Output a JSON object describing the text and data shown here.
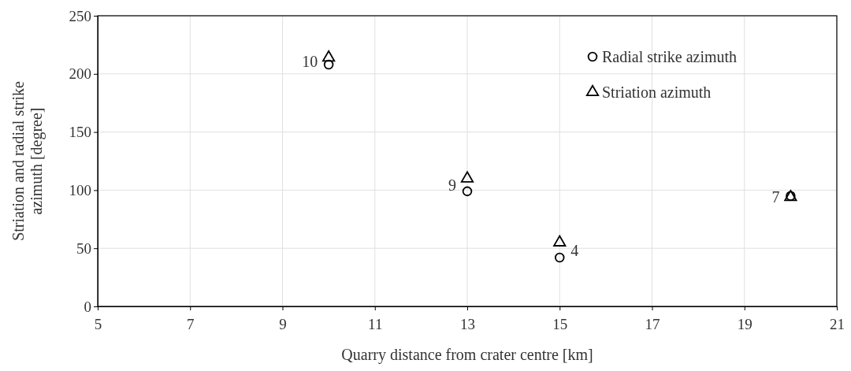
{
  "chart_data": {
    "type": "scatter",
    "xlabel": "Quarry distance from crater centre [km]",
    "ylabel": "Striation and radial strike azimuth [degree]",
    "xlim": [
      5,
      21
    ],
    "xticks": [
      5,
      7,
      9,
      11,
      13,
      15,
      17,
      19,
      21
    ],
    "ylim": [
      0,
      250
    ],
    "yticks": [
      0,
      50,
      100,
      150,
      200,
      250
    ],
    "grid": true,
    "legend": "top right",
    "series": [
      {
        "name": "Radial strike azimuth",
        "color": "#000000",
        "marker": "circle",
        "x": [
          10,
          13,
          15,
          20
        ],
        "values": [
          208,
          99,
          42,
          95
        ]
      },
      {
        "name": "Striation azimuth",
        "color": "#000000",
        "marker": "triangle",
        "x": [
          10,
          13,
          15,
          20
        ],
        "values": [
          214,
          110,
          55,
          94
        ]
      }
    ],
    "annotations": [
      {
        "text": "10",
        "x": 10,
        "y": 211
      },
      {
        "text": "9",
        "x": 13,
        "y": 104
      },
      {
        "text": "4",
        "x": 15,
        "y": 48
      },
      {
        "text": "7",
        "x": 20,
        "y": 94
      }
    ]
  }
}
